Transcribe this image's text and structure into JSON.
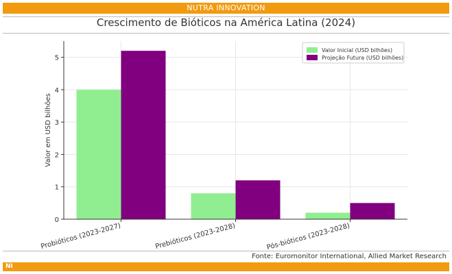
{
  "header": {
    "brand": "NUTRA INNOVATION"
  },
  "footer": {
    "source": "Fonte: Euromonitor International, Allied Market Research",
    "logo": "NI"
  },
  "colors": {
    "brand_orange": "#f29b10",
    "initial": "#90ee90",
    "future": "#800080"
  },
  "chart_data": {
    "type": "bar",
    "title": "Crescimento de Bióticos na América Latina (2024)",
    "xlabel": "",
    "ylabel": "Valor em USD bilhões",
    "categories": [
      "Probióticos (2023-2027)",
      "Prebióticos (2023-2028)",
      "Pós-bióticos (2023-2028)"
    ],
    "series": [
      {
        "name": "Valor Inicial (USD bilhões)",
        "color": "#90ee90",
        "values": [
          4.0,
          0.8,
          0.2
        ]
      },
      {
        "name": "Projeção Futura (USD bilhões)",
        "color": "#800080",
        "values": [
          5.2,
          1.2,
          0.5
        ]
      }
    ],
    "ylim": [
      0,
      5.5
    ],
    "yticks": [
      0,
      1,
      2,
      3,
      4,
      5
    ],
    "grid": true,
    "legend_position": "top-right"
  }
}
